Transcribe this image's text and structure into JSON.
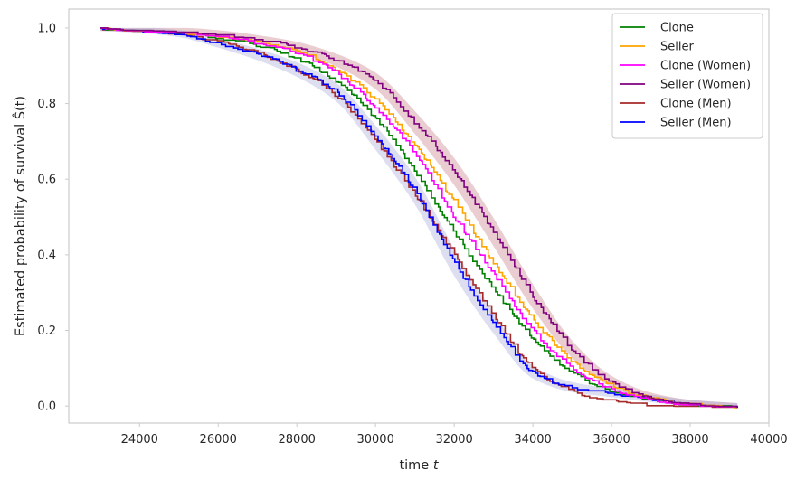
{
  "chart_data": {
    "type": "line",
    "title": "",
    "xlabel": "time",
    "xlabel_var": "t",
    "ylabel": "Estimated probability of survival Ŝ(t)",
    "xlim": [
      22200,
      40000
    ],
    "ylim": [
      -0.045,
      1.05
    ],
    "xticks": [
      24000,
      26000,
      28000,
      30000,
      32000,
      34000,
      36000,
      38000,
      40000
    ],
    "yticks": [
      0.0,
      0.2,
      0.4,
      0.6,
      0.8,
      1.0
    ],
    "xtick_labels": [
      "24000",
      "26000",
      "28000",
      "30000",
      "32000",
      "34000",
      "36000",
      "38000",
      "40000"
    ],
    "ytick_labels": [
      "0.0",
      "0.2",
      "0.4",
      "0.6",
      "0.8",
      "1.0"
    ],
    "grid": false,
    "legend_position": "upper right",
    "step": true,
    "series": [
      {
        "name": "Clone",
        "color": "#008000",
        "x": [
          23000,
          24000,
          25000,
          26000,
          27000,
          28000,
          29000,
          30000,
          31000,
          32000,
          33000,
          34000,
          35000,
          36000,
          37000,
          38000,
          39200
        ],
        "y": [
          1.0,
          0.995,
          0.99,
          0.975,
          0.955,
          0.92,
          0.86,
          0.76,
          0.62,
          0.46,
          0.31,
          0.18,
          0.09,
          0.04,
          0.018,
          0.006,
          0.0
        ]
      },
      {
        "name": "Seller",
        "color": "#ffa500",
        "x": [
          23000,
          24000,
          25000,
          26000,
          27000,
          28000,
          29000,
          30000,
          31000,
          32000,
          33000,
          34000,
          35000,
          36000,
          37000,
          38000,
          39200
        ],
        "y": [
          1.0,
          0.995,
          0.99,
          0.98,
          0.965,
          0.94,
          0.89,
          0.81,
          0.69,
          0.54,
          0.38,
          0.23,
          0.12,
          0.055,
          0.022,
          0.008,
          0.0
        ]
      },
      {
        "name": "Clone (Women)",
        "color": "#ff00ff",
        "x": [
          23000,
          24000,
          25000,
          26000,
          27000,
          28000,
          29000,
          30000,
          31000,
          32000,
          33000,
          34000,
          35000,
          36000,
          37000,
          38000,
          39200
        ],
        "y": [
          1.0,
          0.995,
          0.99,
          0.98,
          0.96,
          0.935,
          0.88,
          0.79,
          0.67,
          0.5,
          0.35,
          0.2,
          0.1,
          0.045,
          0.018,
          0.006,
          0.0
        ]
      },
      {
        "name": "Seller (Women)",
        "color": "#800080",
        "x": [
          23000,
          24000,
          25000,
          26000,
          27000,
          28000,
          29000,
          30000,
          31000,
          32000,
          33000,
          34000,
          35000,
          36000,
          37000,
          38000,
          39200
        ],
        "y": [
          1.0,
          0.997,
          0.993,
          0.985,
          0.97,
          0.95,
          0.915,
          0.86,
          0.75,
          0.62,
          0.46,
          0.29,
          0.15,
          0.065,
          0.025,
          0.008,
          0.0
        ]
      },
      {
        "name": "Clone (Men)",
        "color": "#a52a2a",
        "x": [
          23000,
          24000,
          25000,
          26000,
          27000,
          28000,
          29000,
          30000,
          31000,
          32000,
          33000,
          34000,
          35000,
          36000,
          37000,
          38000,
          39200
        ],
        "y": [
          1.0,
          0.995,
          0.985,
          0.965,
          0.935,
          0.89,
          0.82,
          0.7,
          0.56,
          0.4,
          0.24,
          0.1,
          0.04,
          0.015,
          0.005,
          0.003,
          0.0
        ]
      },
      {
        "name": "Seller (Men)",
        "color": "#0000ff",
        "x": [
          23000,
          24000,
          25000,
          26000,
          27000,
          28000,
          29000,
          30000,
          31000,
          32000,
          33000,
          34000,
          35000,
          36000,
          37000,
          38000,
          39200
        ],
        "y": [
          1.0,
          0.995,
          0.985,
          0.96,
          0.93,
          0.89,
          0.83,
          0.71,
          0.57,
          0.38,
          0.22,
          0.09,
          0.05,
          0.035,
          0.02,
          0.008,
          0.0
        ]
      }
    ],
    "confidence_bands": [
      {
        "color": "#c0707a",
        "opacity": 0.35
      },
      {
        "color": "#a0a0d8",
        "opacity": 0.35
      }
    ]
  }
}
